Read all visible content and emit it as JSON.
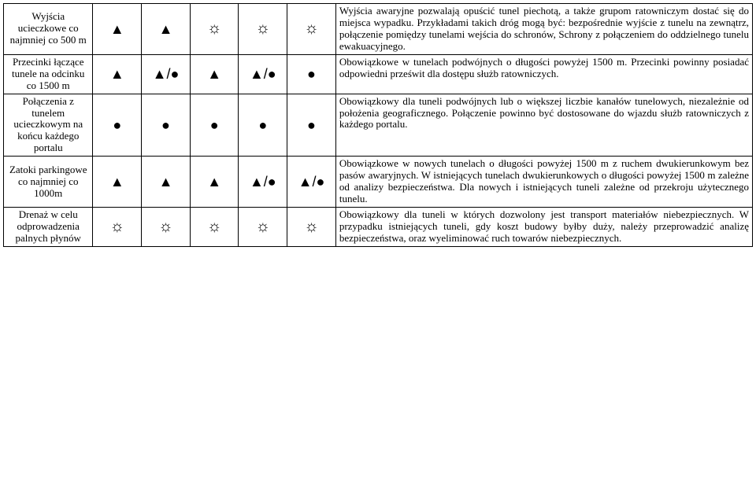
{
  "symbols": {
    "triangle": "▲",
    "sun": "☼",
    "dot": "●",
    "triangle_dot": "▲/●"
  },
  "rows": [
    {
      "label": "Wyjścia ucieczkowe co najmniej co 500 m",
      "c": [
        "triangle",
        "triangle",
        "sun",
        "sun",
        "sun"
      ],
      "desc": "Wyjścia awaryjne pozwalają opuścić tunel piechotą, a także grupom ratowniczym dostać się do miejsca wypadku. Przykładami takich dróg mogą być: bezpośrednie wyjście z tunelu na zewnątrz, połączenie pomiędzy tunelami wejścia do schronów, Schrony z połączeniem do oddzielnego tunelu ewakuacyjnego."
    },
    {
      "label": "Przecinki łączące tunele na odcinku co 1500 m",
      "c": [
        "triangle",
        "triangle_dot",
        "triangle",
        "triangle_dot",
        "dot"
      ],
      "desc": "Obowiązkowe w tunelach podwójnych o długości powyżej 1500 m. Przecinki powinny posiadać odpowiedni prześwit dla dostępu służb ratowniczych."
    },
    {
      "label": "Połączenia z tunelem ucieczkowym na końcu każdego portalu",
      "c": [
        "dot",
        "dot",
        "dot",
        "dot",
        "dot"
      ],
      "desc": "Obowiązkowy dla tuneli podwójnych lub o większej liczbie kanałów tunelowych, niezależnie od położenia geograficznego. Połączenie powinno być dostosowane do wjazdu służb ratowniczych z każdego portalu."
    },
    {
      "label": "Zatoki parkingowe co najmniej co 1000m",
      "c": [
        "triangle",
        "triangle",
        "triangle",
        "triangle_dot",
        "triangle_dot"
      ],
      "desc": "Obowiązkowe w nowych tunelach o długości powyżej 1500 m z ruchem dwukierunkowym bez pasów awaryjnych. W istniejących tunelach dwukierunkowych o długości powyżej 1500 m zależne od analizy bezpieczeństwa. Dla nowych i istniejących tuneli zależne od przekroju użytecznego tunelu."
    },
    {
      "label": "Drenaż w celu odprowadzenia palnych płynów",
      "c": [
        "sun",
        "sun",
        "sun",
        "sun",
        "sun"
      ],
      "desc": "Obowiązkowy dla tuneli w których dozwolony jest transport materiałów niebezpiecznych. W przypadku istniejących tuneli, gdy koszt budowy byłby duży, należy przeprowadzić analizę bezpieczeństwa, oraz wyeliminować ruch towarów niebezpiecznych."
    }
  ]
}
